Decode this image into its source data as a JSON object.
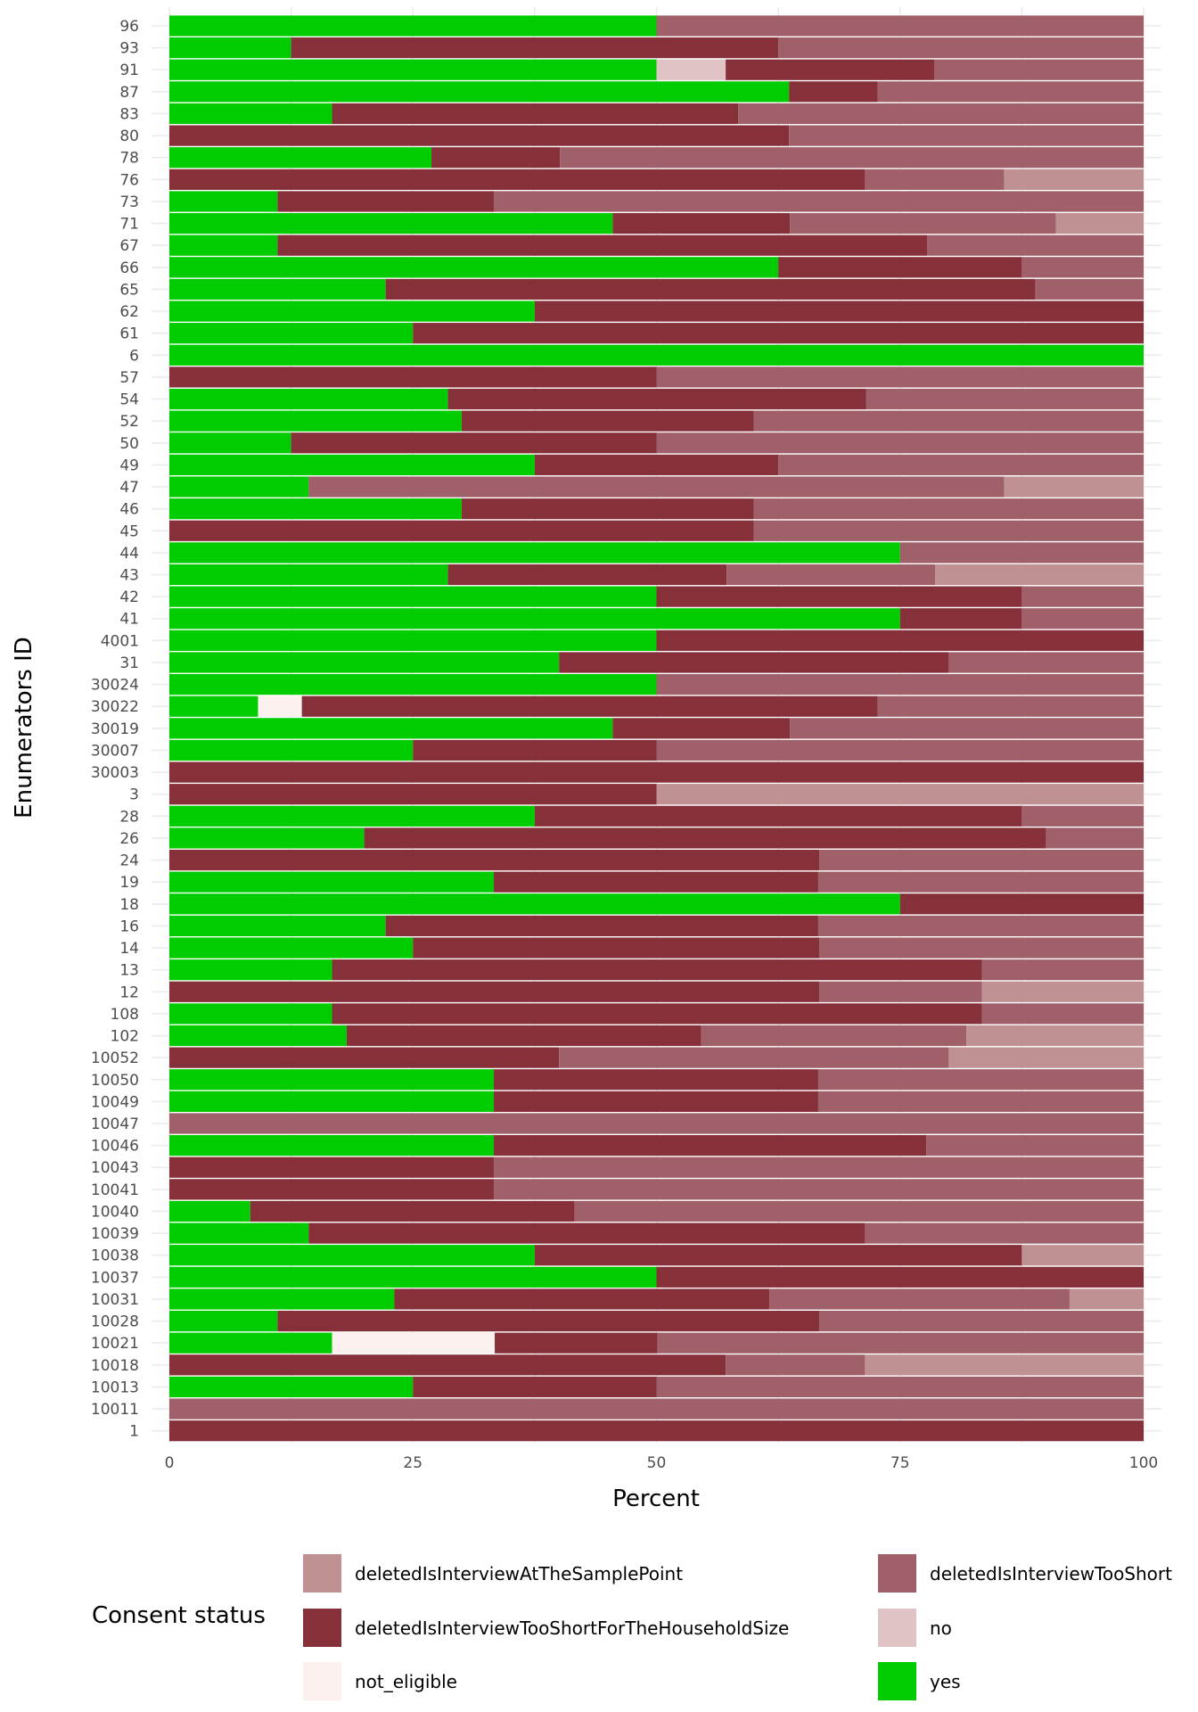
{
  "chart_data": {
    "type": "bar",
    "orientation": "horizontal",
    "stacked": true,
    "title": "",
    "xlabel": "Percent",
    "ylabel": "Enumerators ID",
    "xlim": [
      0,
      100
    ],
    "xticks": [
      "0",
      "25",
      "50",
      "75",
      "100"
    ],
    "legend_title": "Consent status",
    "legend_position": "bottom",
    "series": [
      {
        "name": "deletedIsInterviewAtTheSamplePoint",
        "color": "#c09192"
      },
      {
        "name": "deletedIsInterviewTooShort",
        "color": "#a0606a"
      },
      {
        "name": "deletedIsInterviewTooShortForTheHouseholdSize",
        "color": "#86303a"
      },
      {
        "name": "no",
        "color": "#e0c3c4"
      },
      {
        "name": "not_eligible",
        "color": "#fdf1ef"
      },
      {
        "name": "yes",
        "color": "#00cc00"
      }
    ],
    "stack_order_left_to_right": [
      "yes",
      "not_eligible",
      "no",
      "deletedIsInterviewTooShortForTheHouseholdSize",
      "deletedIsInterviewTooShort",
      "deletedIsInterviewAtTheSamplePoint"
    ],
    "categories": [
      "96",
      "93",
      "91",
      "87",
      "83",
      "80",
      "78",
      "76",
      "73",
      "71",
      "67",
      "66",
      "65",
      "62",
      "61",
      "6",
      "57",
      "54",
      "52",
      "50",
      "49",
      "47",
      "46",
      "45",
      "44",
      "43",
      "42",
      "41",
      "4001",
      "31",
      "30024",
      "30022",
      "30019",
      "30007",
      "30003",
      "3",
      "28",
      "26",
      "24",
      "19",
      "18",
      "16",
      "14",
      "13",
      "12",
      "108",
      "102",
      "10052",
      "10050",
      "10049",
      "10047",
      "10046",
      "10043",
      "10041",
      "10040",
      "10039",
      "10038",
      "10037",
      "10031",
      "10028",
      "10021",
      "10018",
      "10013",
      "10011",
      "1"
    ],
    "values": {
      "yes": [
        50,
        12.5,
        50,
        63.6,
        16.7,
        0,
        26.9,
        0,
        11.1,
        45.5,
        11.1,
        62.5,
        22.2,
        37.5,
        25,
        100,
        0,
        28.6,
        30,
        12.5,
        37.5,
        14.3,
        30,
        0,
        75,
        28.6,
        50,
        75,
        50,
        40,
        50,
        9.1,
        45.5,
        25,
        0,
        0,
        37.5,
        20,
        0,
        33.3,
        75,
        22.2,
        25,
        16.7,
        0,
        16.7,
        18.2,
        0,
        33.3,
        33.3,
        0,
        33.3,
        0,
        0,
        8.3,
        14.3,
        37.5,
        50,
        23.1,
        11.1,
        16.7,
        0,
        25,
        0,
        0
      ],
      "not_eligible": [
        0,
        0,
        0,
        0,
        0,
        0,
        0,
        0,
        0,
        0,
        0,
        0,
        0,
        0,
        0,
        0,
        0,
        0,
        0,
        0,
        0,
        0,
        0,
        0,
        0,
        0,
        0,
        0,
        0,
        0,
        0,
        4.5,
        0,
        0,
        0,
        0,
        0,
        0,
        0,
        0,
        0,
        0,
        0,
        0,
        0,
        0,
        0,
        0,
        0,
        0,
        0,
        0,
        0,
        0,
        0,
        0,
        0,
        0,
        0,
        0,
        16.7,
        0,
        0,
        0,
        0
      ],
      "no": [
        0,
        0,
        7.1,
        0,
        0,
        0,
        0,
        0,
        0,
        0,
        0,
        0,
        0,
        0,
        0,
        0,
        0,
        0,
        0,
        0,
        0,
        0,
        0,
        0,
        0,
        0,
        0,
        0,
        0,
        0,
        0,
        0,
        0,
        0,
        0,
        0,
        0,
        0,
        0,
        0,
        0,
        0,
        0,
        0,
        0,
        0,
        0,
        0,
        0,
        0,
        0,
        0,
        0,
        0,
        0,
        0,
        0,
        0,
        0,
        0,
        0,
        0,
        0,
        0,
        0
      ],
      "deletedIsInterviewTooShortForTheHouseholdSize": [
        0,
        50,
        21.4,
        9.1,
        41.7,
        63.6,
        13.2,
        71.4,
        22.2,
        18.2,
        66.7,
        25,
        66.7,
        62.5,
        75,
        0,
        50,
        42.9,
        30,
        37.5,
        25,
        0,
        30,
        60,
        0,
        28.6,
        37.5,
        12.5,
        50,
        40,
        0,
        59.1,
        18.2,
        25,
        100,
        50,
        50,
        70,
        66.7,
        33.3,
        25,
        44.4,
        41.7,
        66.7,
        66.7,
        66.7,
        36.4,
        40,
        33.3,
        33.3,
        0,
        44.4,
        33.3,
        33.3,
        33.3,
        57.1,
        50,
        50,
        38.5,
        55.6,
        16.7,
        57.1,
        25,
        0,
        100
      ],
      "deletedIsInterviewTooShort": [
        50,
        37.5,
        21.5,
        27.3,
        41.6,
        36.4,
        59.9,
        14.3,
        66.7,
        27.3,
        22.2,
        12.5,
        11.1,
        0,
        0,
        0,
        50,
        28.5,
        40,
        50,
        37.5,
        71.4,
        40,
        40,
        25,
        21.4,
        12.5,
        12.5,
        0,
        20,
        50,
        31.8,
        36.3,
        50,
        0,
        0,
        12.5,
        10,
        33.3,
        33.4,
        0,
        33.4,
        33.3,
        16.6,
        16.7,
        16.6,
        27.2,
        40,
        33.4,
        33.4,
        100,
        22.3,
        66.7,
        66.7,
        58.4,
        28.6,
        0,
        0,
        30.8,
        33.3,
        66.6,
        14.3,
        50,
        100,
        0
      ],
      "deletedIsInterviewAtTheSamplePoint": [
        0,
        0,
        0,
        0,
        0,
        0,
        0,
        14.3,
        0,
        9,
        0,
        0,
        0,
        0,
        0,
        0,
        0,
        0,
        0,
        0,
        0,
        14.3,
        0,
        0,
        0,
        21.4,
        0,
        0,
        0,
        0,
        0,
        0,
        0,
        0,
        0,
        50,
        0,
        0,
        0,
        0,
        0,
        0,
        0,
        0,
        16.6,
        0,
        18.2,
        20,
        0,
        0,
        0,
        0,
        0,
        0,
        0,
        0,
        12.5,
        0,
        7.6,
        0,
        0,
        28.6,
        0,
        0,
        0
      ]
    }
  }
}
